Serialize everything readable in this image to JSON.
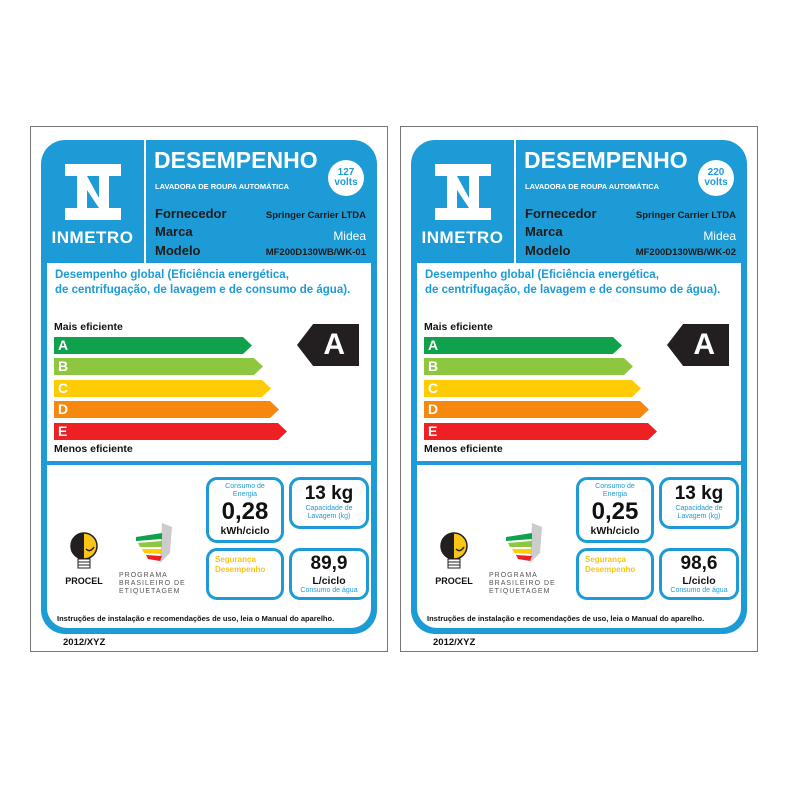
{
  "labels": [
    {
      "logo": "INMETRO",
      "title": "DESEMPENHO",
      "subtitle": "LAVADORA DE ROUPA AUTOMÁTICA",
      "voltage": "127",
      "voltage_unit": "volts",
      "fields": {
        "supplier_label": "Fornecedor",
        "supplier": "Springer Carrier LTDA",
        "brand_label": "Marca",
        "brand": "Midea",
        "model_label": "Modelo",
        "model": "MF200D130WB/WK-01"
      },
      "description_line1": "Desempenho global (Eficiência energética,",
      "description_line2": "de centrifugação, de lavagem e de consumo de água).",
      "most_efficient": "Mais eficiente",
      "least_efficient": "Menos eficiente",
      "classes": [
        "A",
        "B",
        "C",
        "D",
        "E"
      ],
      "rating": "A",
      "energy": {
        "label1": "Consumo de",
        "label2": "Energia",
        "value": "0,28",
        "unit": "kWh/ciclo"
      },
      "capacity": {
        "value": "13 kg",
        "label1": "Capacidade de",
        "label2": "Lavagem (kg)"
      },
      "safety": {
        "line1": "Segurança",
        "line2": "Desempenho"
      },
      "water": {
        "value": "89,9",
        "unit": "L/ciclo",
        "label": "Consumo de água"
      },
      "procel": "PROCEL",
      "pbe": [
        "PROGRAMA",
        "BRASILEIRO DE",
        "ETIQUETAGEM"
      ],
      "instructions": "Instruções de instalação e recomendações de uso, leia o Manual do aparelho.",
      "code": "2012/XYZ"
    },
    {
      "logo": "INMETRO",
      "title": "DESEMPENHO",
      "subtitle": "LAVADORA DE ROUPA AUTOMÁTICA",
      "voltage": "220",
      "voltage_unit": "volts",
      "fields": {
        "supplier_label": "Fornecedor",
        "supplier": "Springer Carrier LTDA",
        "brand_label": "Marca",
        "brand": "Midea",
        "model_label": "Modelo",
        "model": "MF200D130WB/WK-02"
      },
      "description_line1": "Desempenho global (Eficiência energética,",
      "description_line2": "de centrifugação, de lavagem e de consumo de água).",
      "most_efficient": "Mais eficiente",
      "least_efficient": "Menos eficiente",
      "classes": [
        "A",
        "B",
        "C",
        "D",
        "E"
      ],
      "rating": "A",
      "energy": {
        "label1": "Consumo de",
        "label2": "Energia",
        "value": "0,25",
        "unit": "kWh/ciclo"
      },
      "capacity": {
        "value": "13 kg",
        "label1": "Capacidade de",
        "label2": "Lavagem (kg)"
      },
      "safety": {
        "line1": "Segurança",
        "line2": "Desempenho"
      },
      "water": {
        "value": "98,6",
        "unit": "L/ciclo",
        "label": "Consumo de água"
      },
      "procel": "PROCEL",
      "pbe": [
        "PROGRAMA",
        "BRASILEIRO DE",
        "ETIQUETAGEM"
      ],
      "instructions": "Instruções de instalação e recomendações de uso, leia o Manual do aparelho.",
      "code": "2012/XYZ"
    }
  ],
  "colors": {
    "inmetro_blue": "#1c9bd7",
    "A": "#0fa14b",
    "B": "#8dc63f",
    "C": "#ffcb05",
    "D": "#f7880f",
    "E": "#ee2024",
    "rating": "#231f20"
  }
}
